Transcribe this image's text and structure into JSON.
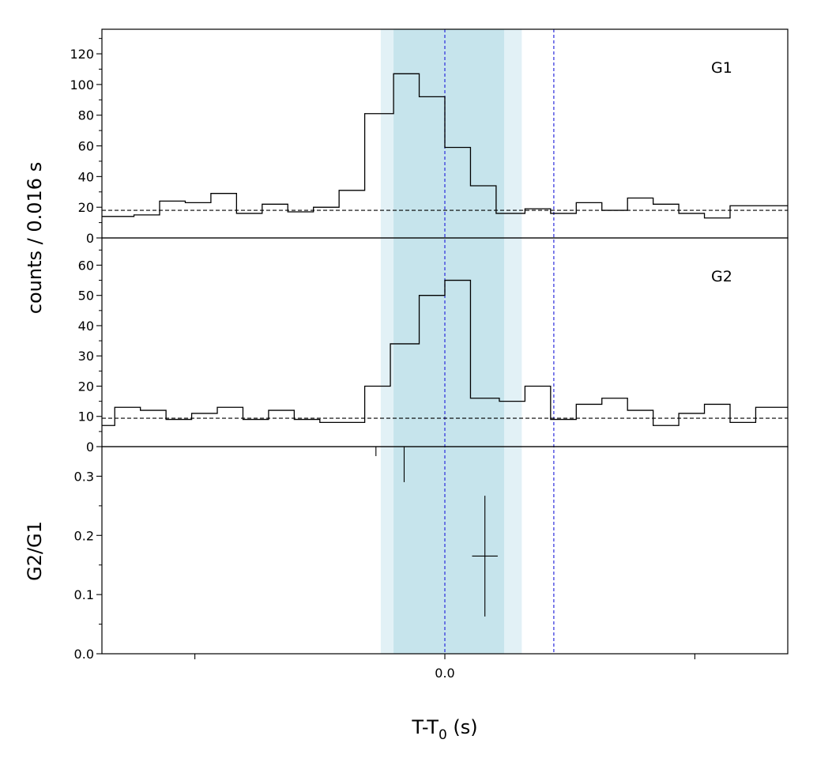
{
  "chart_data": {
    "type": "histogram",
    "xlabel_main": "T-T",
    "xlabel_sub": "0",
    "xlabel_unit": " (s)",
    "x_ticks": [
      {
        "value": 0.0,
        "label": "0.0"
      }
    ],
    "xlim": [
      -0.107,
      0.107
    ],
    "bin_width": 0.008,
    "shaded_regions": [
      {
        "from": -0.02,
        "to": 0.024,
        "color": "#e2f1f6"
      },
      {
        "from": -0.016,
        "to": 0.0185,
        "color": "#c6e4ec"
      }
    ],
    "vertical_lines": [
      0.0,
      0.034
    ],
    "vertical_line_color": "#2b2bdc",
    "shared_ylabel": "counts /  0.016 s",
    "panels": [
      {
        "label": "G1",
        "ylim": [
          0,
          136
        ],
        "yticks": [
          0,
          20,
          40,
          60,
          80,
          100,
          120
        ],
        "background_level": 18,
        "x_edges": [
          -0.107,
          -0.097,
          -0.089,
          -0.081,
          -0.073,
          -0.065,
          -0.057,
          -0.049,
          -0.041,
          -0.033,
          -0.025,
          -0.016,
          -0.008,
          0.0,
          0.008,
          0.016,
          0.025,
          0.033,
          0.041,
          0.049,
          0.057,
          0.065,
          0.073,
          0.081,
          0.089,
          0.097,
          0.103,
          0.107
        ],
        "counts": [
          14,
          15,
          24,
          23,
          29,
          16,
          22,
          17,
          20,
          31,
          81,
          107,
          92,
          59,
          34,
          16,
          19,
          16,
          23,
          18,
          26,
          22,
          16,
          13,
          21,
          21,
          21
        ]
      },
      {
        "label": "G2",
        "ylim": [
          0,
          69
        ],
        "yticks": [
          0,
          10,
          20,
          30,
          40,
          50,
          60
        ],
        "background_level": 9.4,
        "x_edges": [
          -0.107,
          -0.103,
          -0.095,
          -0.087,
          -0.079,
          -0.071,
          -0.063,
          -0.055,
          -0.047,
          -0.039,
          -0.025,
          -0.017,
          -0.008,
          0.0,
          0.008,
          0.017,
          0.025,
          0.033,
          0.041,
          0.049,
          0.057,
          0.065,
          0.073,
          0.081,
          0.089,
          0.097,
          0.103,
          0.107
        ],
        "counts": [
          7,
          13,
          12,
          9,
          11,
          13,
          9,
          12,
          9,
          8,
          20,
          34,
          50,
          55,
          16,
          15,
          20,
          9,
          14,
          16,
          12,
          7,
          11,
          14,
          8,
          13,
          13
        ]
      },
      {
        "label": "",
        "ylabel": "G2/G1",
        "ylim": [
          0,
          0.35
        ],
        "yticks": [
          0.0,
          0.1,
          0.2,
          0.3
        ],
        "ratio_points": [
          {
            "x": 0.0125,
            "y": 0.165,
            "yerr_low": 0.063,
            "yerr_high": 0.267,
            "xerr": 0.004
          },
          {
            "x": -0.0127,
            "y": 0.35,
            "yerr_low": 0.29,
            "yerr_high": 0.35,
            "xerr": 0.0
          },
          {
            "x": -0.0215,
            "y": 0.35,
            "yerr_low": 0.334,
            "yerr_high": 0.35,
            "xerr": 0.0
          }
        ]
      }
    ]
  }
}
